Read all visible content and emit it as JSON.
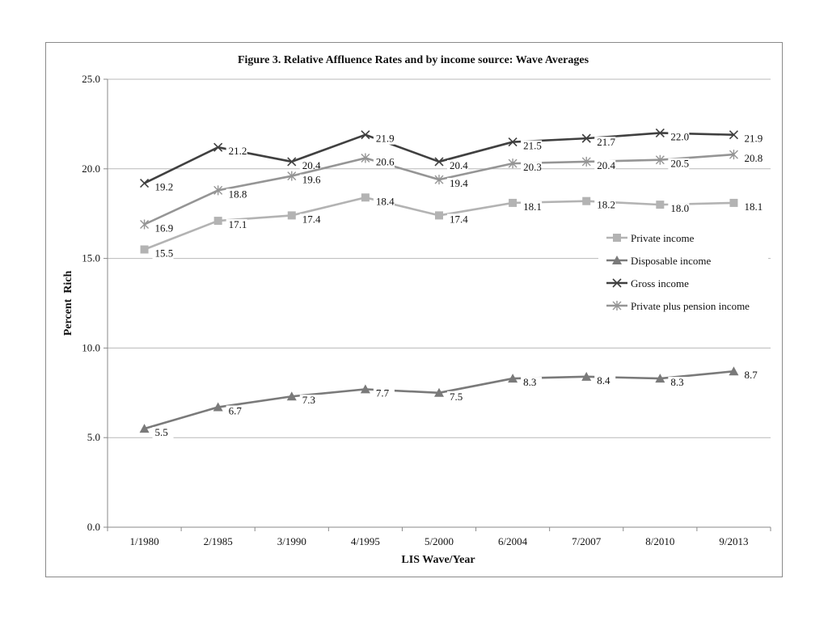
{
  "chart_data": {
    "type": "line",
    "title": "Figure 3. Relative Affluence Rates and by income source: Wave Averages",
    "xlabel": "LIS Wave/Year",
    "ylabel": "Percent  Rich",
    "ylim": [
      0,
      25
    ],
    "yticks": [
      "0.0",
      "5.0",
      "10.0",
      "15.0",
      "20.0",
      "25.0"
    ],
    "grid": true,
    "legend_position": "right",
    "categories": [
      "1/1980",
      "2/1985",
      "3/1990",
      "4/1995",
      "5/2000",
      "6/2004",
      "7/2007",
      "8/2010",
      "9/2013"
    ],
    "series": [
      {
        "name": "Private income",
        "marker": "square",
        "color": "#b3b3b3",
        "values": [
          15.5,
          17.1,
          17.4,
          18.4,
          17.4,
          18.1,
          18.2,
          18.0,
          18.1
        ],
        "labels": [
          "15.5",
          "17.1",
          "17.4",
          "18.4",
          "17.4",
          "18.1",
          "18.2",
          "18.0",
          "18.1"
        ]
      },
      {
        "name": "Disposable income",
        "marker": "triangle",
        "color": "#7a7a7a",
        "values": [
          5.5,
          6.7,
          7.3,
          7.7,
          7.5,
          8.3,
          8.4,
          8.3,
          8.7
        ],
        "labels": [
          "5.5",
          "6.7",
          "7.3",
          "7.7",
          "7.5",
          "8.3",
          "8.4",
          "8.3",
          "8.7"
        ]
      },
      {
        "name": "Gross income",
        "marker": "x",
        "color": "#404040",
        "values": [
          19.2,
          21.2,
          20.4,
          21.9,
          20.4,
          21.5,
          21.7,
          22.0,
          21.9
        ],
        "labels": [
          "19.2",
          "21.2",
          "20.4",
          "21.9",
          "20.4",
          "21.5",
          "21.7",
          "22.0",
          "21.9"
        ]
      },
      {
        "name": "Private plus pension income",
        "marker": "star",
        "color": "#959595",
        "values": [
          16.9,
          18.8,
          19.6,
          20.6,
          19.4,
          20.3,
          20.4,
          20.5,
          20.8
        ],
        "labels": [
          "16.9",
          "18.8",
          "19.6",
          "20.6",
          "19.4",
          "20.3",
          "20.4",
          "20.5",
          "20.8"
        ]
      }
    ]
  }
}
